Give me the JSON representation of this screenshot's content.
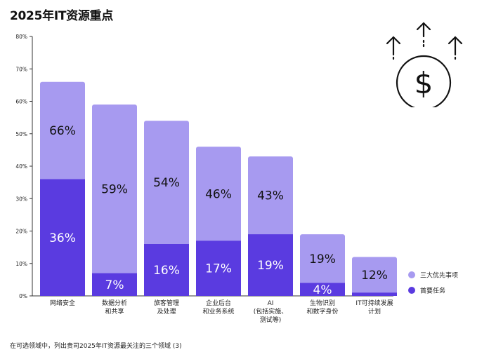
{
  "title": "2025年IT资源重点",
  "footnote": "在可选领域中，列出贵司2025年IT资源最关注的三个领域 (3)",
  "icon": "money-growth-icon",
  "colors": {
    "top3": "#a79af0",
    "first": "#5a3be0",
    "first_text": "#ffffff",
    "top3_text": "#111111"
  },
  "chart_data": {
    "type": "bar",
    "stacked_overlay": true,
    "categories": [
      [
        "网络安全"
      ],
      [
        "数据分析",
        "和共享"
      ],
      [
        "旅客管理",
        "及处理"
      ],
      [
        "企业后台",
        "和业务系统"
      ],
      [
        "AI",
        "(包括实施、",
        "测试等)"
      ],
      [
        "生物识别",
        "和数字身份"
      ],
      [
        "IT可持续发展",
        "计划"
      ]
    ],
    "series": [
      {
        "name": "三大优先事项",
        "values": [
          66,
          59,
          54,
          46,
          43,
          19,
          12
        ]
      },
      {
        "name": "首要任务",
        "values": [
          36,
          7,
          16,
          17,
          19,
          4,
          1
        ]
      }
    ],
    "data_labels_top3": [
      "66%",
      "59%",
      "54%",
      "46%",
      "43%",
      "19%",
      "12%"
    ],
    "data_labels_first": [
      "36%",
      "7%",
      "16%",
      "17%",
      "19%",
      "4%",
      ""
    ],
    "yticks": [
      "0%",
      "10%",
      "20%",
      "30%",
      "40%",
      "50%",
      "60%",
      "70%",
      "80%"
    ],
    "ylim": [
      0,
      80
    ],
    "legend_position": "right"
  }
}
